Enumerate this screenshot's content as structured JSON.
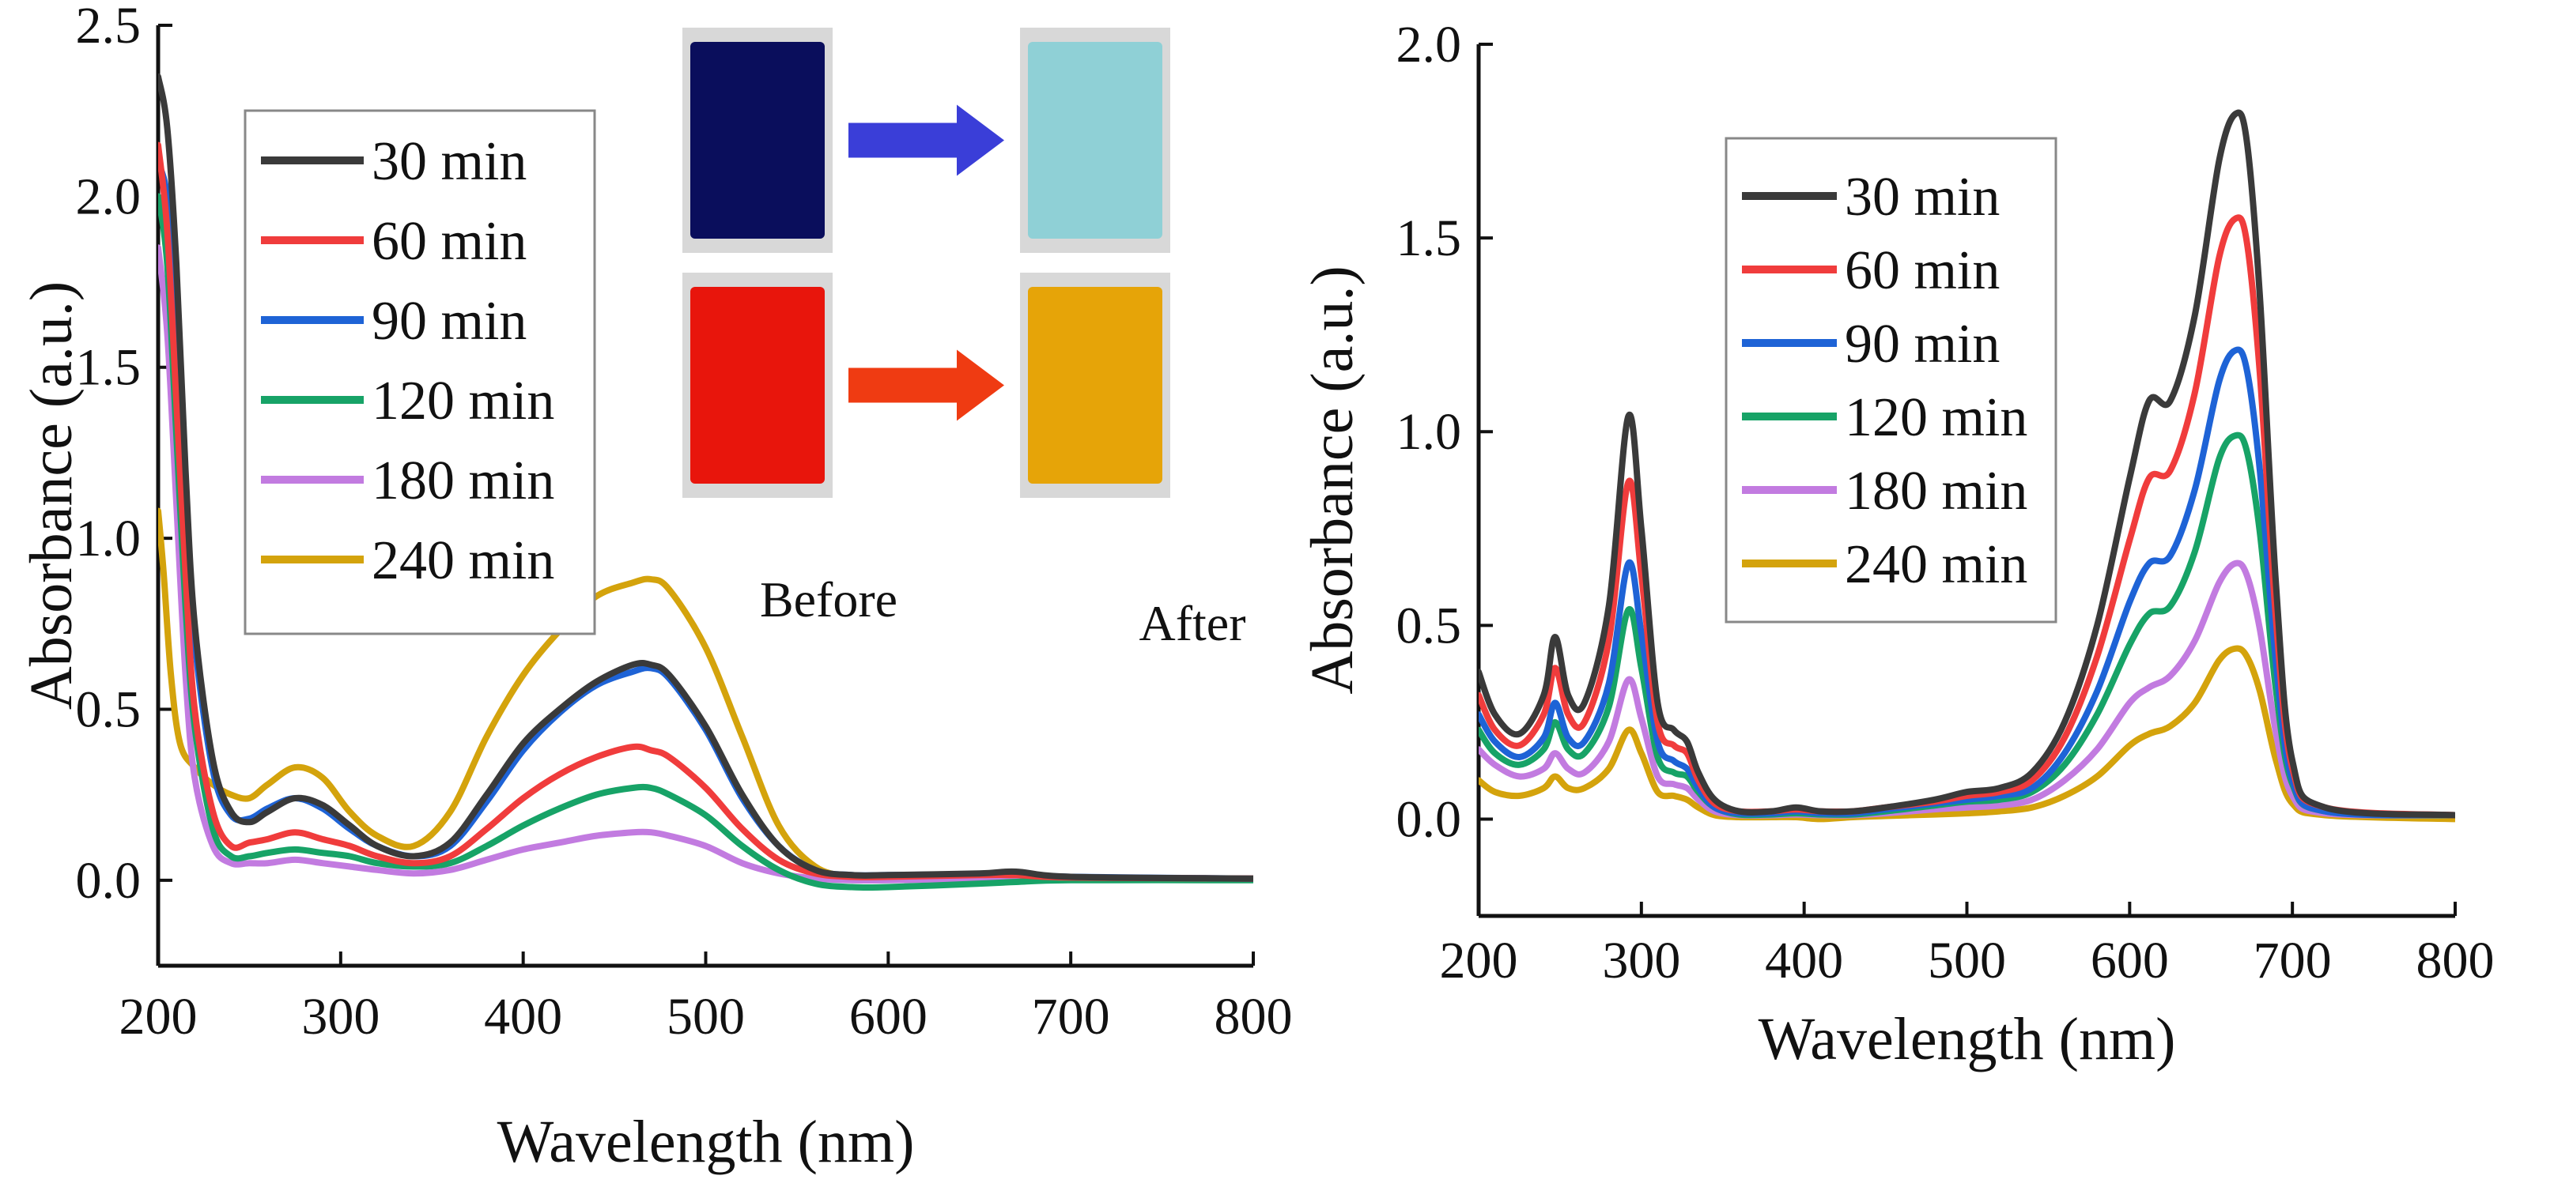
{
  "chart_data": [
    {
      "type": "line",
      "xlabel": "Wavelength (nm)",
      "ylabel": "Absorbance (a.u.)",
      "xlim": [
        200,
        800
      ],
      "ylim": [
        -0.25,
        2.5
      ],
      "xticks": [
        "200",
        "300",
        "400",
        "500",
        "600",
        "700",
        "800"
      ],
      "yticks": [
        "0.0",
        "0.5",
        "1.0",
        "1.5",
        "2.0",
        "2.5"
      ],
      "legend_position": "upper-left",
      "inset": {
        "before_label": "Before",
        "after_label": "After",
        "samples": [
          {
            "before_color": "#0a0e5c",
            "after_color": "#8fd0d6",
            "arrow_color": "#3a3ed8"
          },
          {
            "before_color": "#e8150c",
            "after_color": "#e6a408",
            "arrow_color": "#ef3b12"
          }
        ]
      },
      "series": [
        {
          "name": "30 min",
          "color": "#3a3a3a",
          "x": [
            200,
            205,
            210,
            215,
            220,
            230,
            240,
            250,
            260,
            275,
            290,
            305,
            320,
            340,
            360,
            380,
            400,
            420,
            440,
            460,
            470,
            480,
            500,
            520,
            540,
            560,
            580,
            600,
            650,
            670,
            700,
            800
          ],
          "y": [
            2.35,
            2.2,
            1.8,
            1.2,
            0.75,
            0.35,
            0.2,
            0.17,
            0.2,
            0.24,
            0.22,
            0.16,
            0.1,
            0.07,
            0.11,
            0.25,
            0.4,
            0.5,
            0.58,
            0.63,
            0.63,
            0.6,
            0.45,
            0.25,
            0.1,
            0.03,
            0.015,
            0.015,
            0.02,
            0.025,
            0.01,
            0.005
          ]
        },
        {
          "name": "60 min",
          "color": "#f03c3c",
          "x": [
            200,
            205,
            210,
            215,
            220,
            230,
            240,
            250,
            260,
            275,
            290,
            305,
            320,
            340,
            360,
            380,
            400,
            420,
            440,
            460,
            470,
            480,
            500,
            520,
            540,
            560,
            580,
            600,
            650,
            670,
            700,
            800
          ],
          "y": [
            2.15,
            1.9,
            1.4,
            0.9,
            0.5,
            0.2,
            0.1,
            0.11,
            0.12,
            0.14,
            0.12,
            0.1,
            0.07,
            0.05,
            0.07,
            0.15,
            0.24,
            0.31,
            0.36,
            0.39,
            0.38,
            0.36,
            0.27,
            0.15,
            0.06,
            0.02,
            0.01,
            0.01,
            0.015,
            0.015,
            0.008,
            0.005
          ]
        },
        {
          "name": "90 min",
          "color": "#1e63d6",
          "x": [
            200,
            205,
            210,
            215,
            220,
            230,
            240,
            250,
            260,
            275,
            290,
            305,
            320,
            340,
            360,
            380,
            400,
            420,
            440,
            460,
            470,
            480,
            500,
            520,
            540,
            560,
            580,
            600,
            650,
            670,
            700,
            800
          ],
          "y": [
            2.1,
            2.0,
            1.7,
            1.1,
            0.7,
            0.32,
            0.19,
            0.18,
            0.21,
            0.24,
            0.21,
            0.15,
            0.1,
            0.07,
            0.1,
            0.23,
            0.38,
            0.49,
            0.57,
            0.61,
            0.62,
            0.59,
            0.44,
            0.24,
            0.1,
            0.03,
            0.015,
            0.015,
            0.018,
            0.02,
            0.01,
            0.005
          ]
        },
        {
          "name": "120 min",
          "color": "#17a367",
          "x": [
            200,
            205,
            210,
            215,
            220,
            230,
            240,
            250,
            260,
            275,
            290,
            305,
            320,
            340,
            360,
            380,
            400,
            420,
            440,
            460,
            470,
            480,
            500,
            520,
            540,
            560,
            580,
            600,
            650,
            670,
            700,
            800
          ],
          "y": [
            2.0,
            1.8,
            1.3,
            0.8,
            0.45,
            0.15,
            0.07,
            0.07,
            0.08,
            0.09,
            0.08,
            0.07,
            0.05,
            0.04,
            0.05,
            0.1,
            0.16,
            0.21,
            0.25,
            0.27,
            0.27,
            0.25,
            0.19,
            0.1,
            0.03,
            -0.01,
            -0.02,
            -0.02,
            -0.01,
            -0.005,
            0.0,
            0.0
          ]
        },
        {
          "name": "180 min",
          "color": "#c27be0",
          "x": [
            200,
            205,
            210,
            215,
            220,
            230,
            240,
            250,
            260,
            275,
            290,
            305,
            320,
            340,
            360,
            380,
            400,
            420,
            440,
            460,
            470,
            480,
            500,
            520,
            540,
            560,
            580,
            600,
            650,
            670,
            700,
            800
          ],
          "y": [
            1.85,
            1.6,
            1.1,
            0.6,
            0.3,
            0.1,
            0.05,
            0.05,
            0.05,
            0.06,
            0.05,
            0.04,
            0.03,
            0.02,
            0.03,
            0.06,
            0.09,
            0.11,
            0.13,
            0.14,
            0.14,
            0.13,
            0.1,
            0.05,
            0.02,
            0.005,
            0.0,
            0.0,
            0.005,
            0.005,
            0.003,
            0.002
          ]
        },
        {
          "name": "240 min",
          "color": "#d4a30c",
          "x": [
            200,
            203,
            207,
            212,
            220,
            230,
            240,
            250,
            260,
            275,
            290,
            305,
            320,
            340,
            360,
            380,
            400,
            420,
            440,
            460,
            470,
            480,
            500,
            520,
            540,
            560,
            580,
            600,
            650,
            670,
            700,
            800
          ],
          "y": [
            1.08,
            0.9,
            0.6,
            0.4,
            0.33,
            0.28,
            0.25,
            0.24,
            0.28,
            0.33,
            0.3,
            0.2,
            0.13,
            0.1,
            0.2,
            0.42,
            0.6,
            0.73,
            0.83,
            0.87,
            0.88,
            0.85,
            0.68,
            0.42,
            0.16,
            0.04,
            0.01,
            0.005,
            0.01,
            0.01,
            0.005,
            0.005
          ]
        }
      ]
    },
    {
      "type": "line",
      "xlabel": "Wavelength (nm)",
      "ylabel": "Absorbance (a.u.)",
      "xlim": [
        200,
        800
      ],
      "ylim": [
        -0.25,
        2.0
      ],
      "xticks": [
        "200",
        "300",
        "400",
        "500",
        "600",
        "700",
        "800"
      ],
      "yticks": [
        "0.0",
        "0.5",
        "1.0",
        "1.5",
        "2.0"
      ],
      "legend_position": "upper-left",
      "series": [
        {
          "name": "30 min",
          "color": "#3a3a3a",
          "x": [
            200,
            210,
            225,
            240,
            247,
            255,
            265,
            280,
            292,
            300,
            310,
            320,
            328,
            335,
            345,
            360,
            380,
            395,
            410,
            430,
            450,
            480,
            500,
            520,
            540,
            560,
            580,
            600,
            612,
            625,
            640,
            655,
            665,
            672,
            680,
            690,
            700,
            720,
            800
          ],
          "y": [
            0.38,
            0.27,
            0.22,
            0.32,
            0.47,
            0.32,
            0.3,
            0.55,
            1.04,
            0.75,
            0.3,
            0.23,
            0.2,
            0.12,
            0.05,
            0.02,
            0.02,
            0.03,
            0.02,
            0.02,
            0.03,
            0.05,
            0.07,
            0.08,
            0.12,
            0.25,
            0.5,
            0.88,
            1.08,
            1.08,
            1.3,
            1.7,
            1.82,
            1.75,
            1.35,
            0.6,
            0.15,
            0.03,
            0.01
          ]
        },
        {
          "name": "60 min",
          "color": "#f03c3c",
          "x": [
            200,
            210,
            225,
            240,
            247,
            255,
            265,
            280,
            292,
            300,
            310,
            320,
            328,
            335,
            345,
            360,
            380,
            395,
            410,
            430,
            450,
            480,
            500,
            520,
            540,
            560,
            580,
            600,
            612,
            625,
            640,
            655,
            665,
            672,
            680,
            690,
            700,
            720,
            800
          ],
          "y": [
            0.32,
            0.23,
            0.19,
            0.27,
            0.39,
            0.27,
            0.25,
            0.46,
            0.87,
            0.63,
            0.25,
            0.19,
            0.17,
            0.1,
            0.04,
            0.02,
            0.02,
            0.025,
            0.02,
            0.02,
            0.03,
            0.045,
            0.06,
            0.07,
            0.1,
            0.21,
            0.42,
            0.72,
            0.88,
            0.9,
            1.1,
            1.45,
            1.55,
            1.49,
            1.15,
            0.51,
            0.13,
            0.03,
            0.01
          ]
        },
        {
          "name": "90 min",
          "color": "#1e63d6",
          "x": [
            200,
            210,
            225,
            240,
            247,
            255,
            265,
            280,
            292,
            300,
            310,
            320,
            328,
            335,
            345,
            360,
            380,
            395,
            410,
            430,
            450,
            480,
            500,
            520,
            540,
            560,
            580,
            600,
            612,
            625,
            640,
            655,
            665,
            672,
            680,
            690,
            700,
            720,
            800
          ],
          "y": [
            0.27,
            0.2,
            0.16,
            0.21,
            0.3,
            0.21,
            0.2,
            0.35,
            0.66,
            0.48,
            0.2,
            0.15,
            0.13,
            0.08,
            0.03,
            0.015,
            0.015,
            0.02,
            0.015,
            0.015,
            0.025,
            0.04,
            0.05,
            0.06,
            0.08,
            0.17,
            0.33,
            0.56,
            0.66,
            0.68,
            0.85,
            1.13,
            1.21,
            1.16,
            0.9,
            0.4,
            0.1,
            0.02,
            0.01
          ]
        },
        {
          "name": "120 min",
          "color": "#17a367",
          "x": [
            200,
            210,
            225,
            240,
            247,
            255,
            265,
            280,
            292,
            300,
            310,
            320,
            328,
            335,
            345,
            360,
            380,
            395,
            410,
            430,
            450,
            480,
            500,
            520,
            540,
            560,
            580,
            600,
            612,
            625,
            640,
            655,
            665,
            672,
            680,
            690,
            700,
            720,
            800
          ],
          "y": [
            0.23,
            0.17,
            0.14,
            0.18,
            0.25,
            0.18,
            0.17,
            0.29,
            0.54,
            0.39,
            0.16,
            0.12,
            0.11,
            0.07,
            0.03,
            0.012,
            0.012,
            0.015,
            0.012,
            0.012,
            0.02,
            0.035,
            0.045,
            0.05,
            0.07,
            0.14,
            0.27,
            0.45,
            0.53,
            0.55,
            0.69,
            0.93,
            0.99,
            0.95,
            0.74,
            0.33,
            0.09,
            0.02,
            0.01
          ]
        },
        {
          "name": "180 min",
          "color": "#c27be0",
          "x": [
            200,
            210,
            225,
            240,
            247,
            255,
            265,
            280,
            292,
            300,
            310,
            320,
            328,
            335,
            345,
            360,
            380,
            395,
            410,
            430,
            450,
            480,
            500,
            520,
            540,
            560,
            580,
            600,
            612,
            625,
            640,
            655,
            665,
            672,
            680,
            690,
            700,
            720,
            800
          ],
          "y": [
            0.18,
            0.14,
            0.11,
            0.13,
            0.17,
            0.13,
            0.12,
            0.2,
            0.36,
            0.26,
            0.11,
            0.09,
            0.08,
            0.05,
            0.02,
            0.01,
            0.01,
            0.012,
            0.01,
            0.01,
            0.015,
            0.025,
            0.03,
            0.035,
            0.05,
            0.1,
            0.18,
            0.3,
            0.34,
            0.37,
            0.46,
            0.61,
            0.66,
            0.63,
            0.49,
            0.22,
            0.06,
            0.015,
            0.01
          ]
        },
        {
          "name": "240 min",
          "color": "#d4a30c",
          "x": [
            200,
            210,
            225,
            240,
            247,
            255,
            265,
            280,
            292,
            300,
            310,
            320,
            328,
            335,
            345,
            360,
            380,
            395,
            410,
            430,
            450,
            480,
            500,
            520,
            540,
            560,
            580,
            600,
            612,
            625,
            640,
            655,
            665,
            672,
            680,
            690,
            700,
            720,
            800
          ],
          "y": [
            0.1,
            0.07,
            0.06,
            0.08,
            0.11,
            0.08,
            0.08,
            0.13,
            0.23,
            0.17,
            0.07,
            0.06,
            0.05,
            0.03,
            0.01,
            0.005,
            0.005,
            0.005,
            0.0,
            0.005,
            0.008,
            0.012,
            0.015,
            0.02,
            0.03,
            0.06,
            0.11,
            0.19,
            0.22,
            0.24,
            0.3,
            0.41,
            0.44,
            0.42,
            0.33,
            0.15,
            0.04,
            0.01,
            0.0
          ]
        }
      ]
    }
  ]
}
